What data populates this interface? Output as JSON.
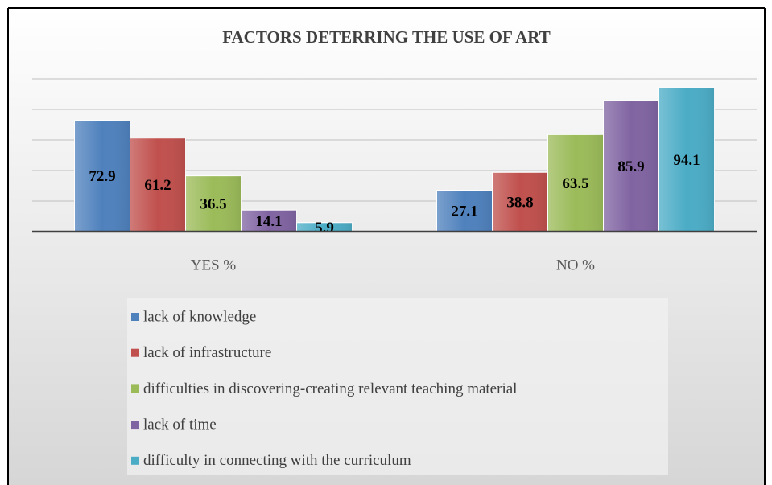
{
  "chart_data": {
    "type": "bar",
    "title": "FACTORS DETERRING THE USE OF ART",
    "categories": [
      "YES %",
      "NO %"
    ],
    "series": [
      {
        "name": "lack of knowledge",
        "color": "#4f81bd",
        "values": [
          72.9,
          27.1
        ]
      },
      {
        "name": "lack of infrastructure",
        "color": "#c0504d",
        "values": [
          61.2,
          38.8
        ]
      },
      {
        "name": "difficulties in discovering-creating relevant teaching material",
        "color": "#9bbb59",
        "values": [
          36.5,
          63.5
        ]
      },
      {
        "name": "lack of time",
        "color": "#8064a2",
        "values": [
          14.1,
          85.9
        ]
      },
      {
        "name": "difficulty in connecting with the curriculum",
        "color": "#4bacc6",
        "values": [
          5.9,
          94.1
        ]
      }
    ],
    "ylim": [
      0,
      100
    ],
    "yticks": [
      0,
      20,
      40,
      60,
      80,
      100
    ],
    "grid": true,
    "legend": "bottom"
  }
}
